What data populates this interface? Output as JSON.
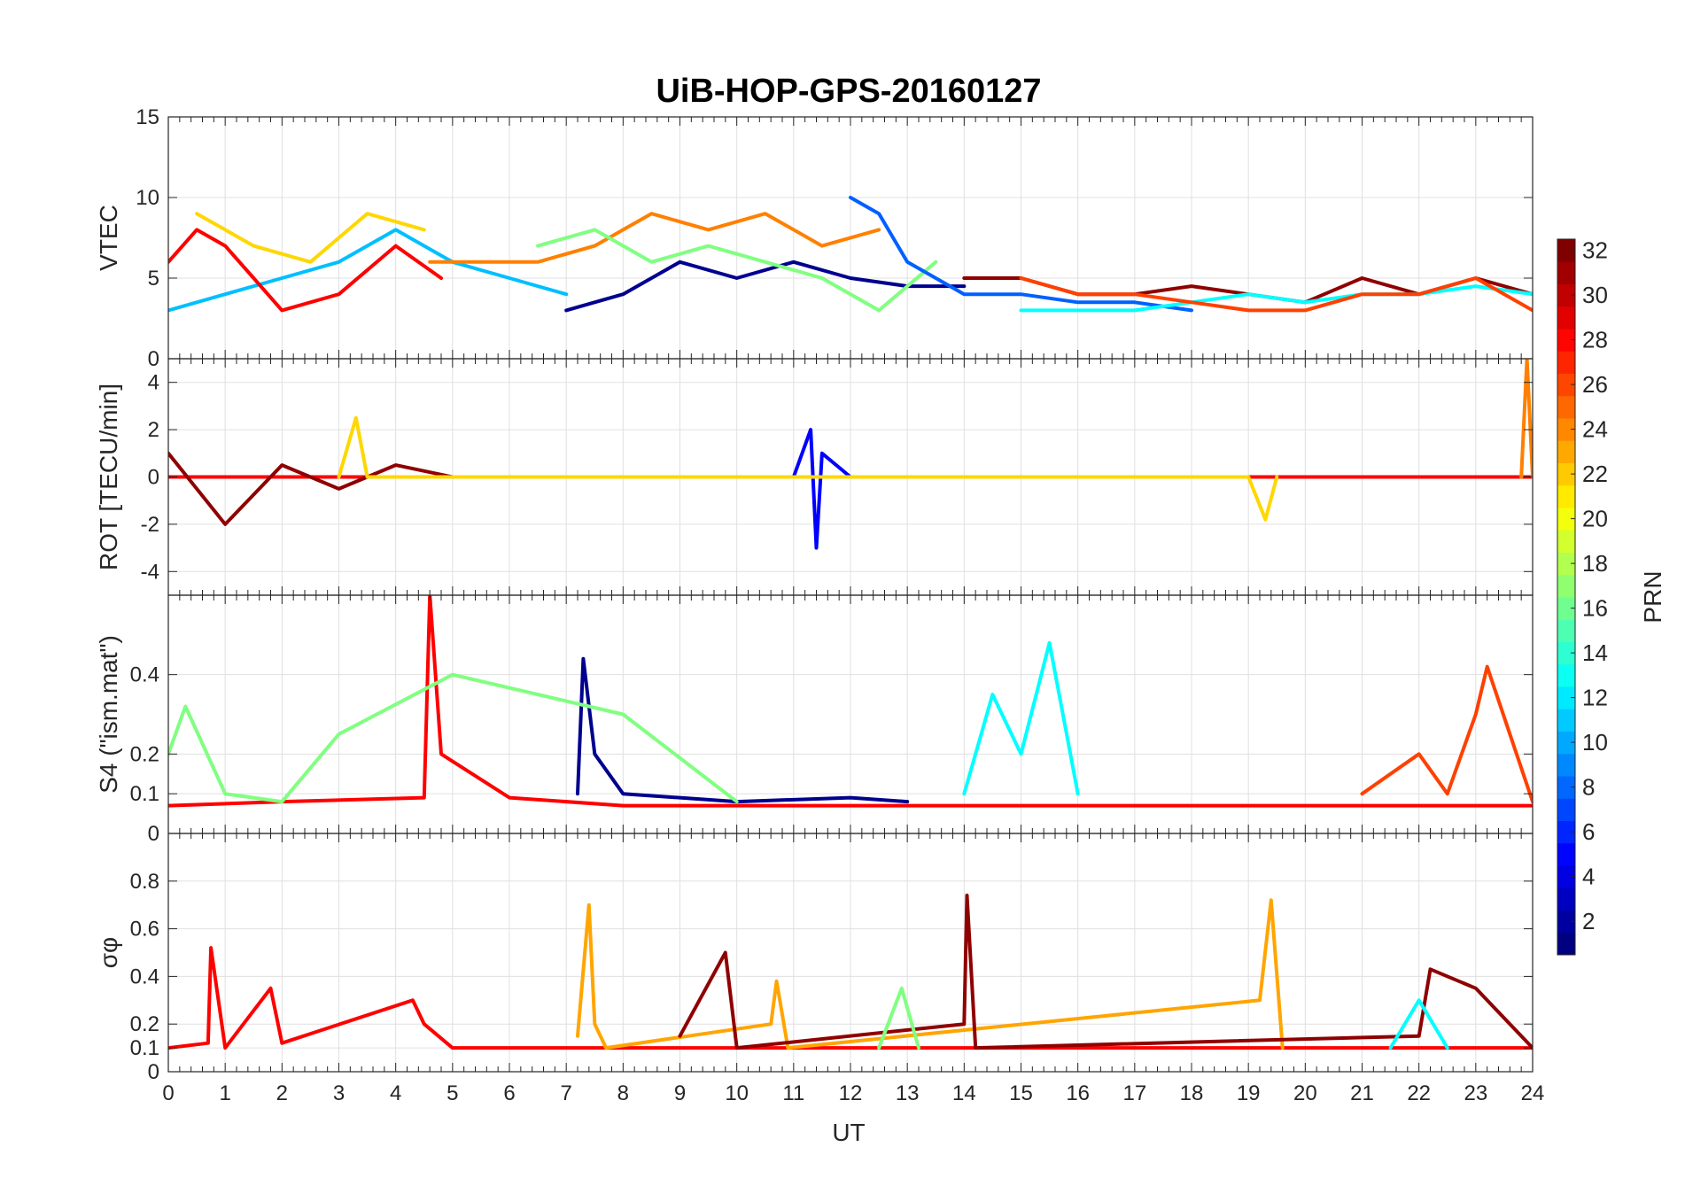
{
  "chart_data": {
    "type": "line",
    "title": "UiB-HOP-GPS-20160127",
    "xlabel": "UT",
    "xlim": [
      0,
      24
    ],
    "xticks": [
      0,
      1,
      2,
      3,
      4,
      5,
      6,
      7,
      8,
      9,
      10,
      11,
      12,
      13,
      14,
      15,
      16,
      17,
      18,
      19,
      20,
      21,
      22,
      23,
      24
    ],
    "panels": [
      {
        "id": "vtec",
        "ylabel": "VTEC",
        "ylim": [
          0,
          15
        ],
        "yticks": [
          0,
          5,
          10,
          15
        ],
        "series": [
          {
            "color": "#00bfff",
            "x": [
              0,
              1,
              2,
              3,
              4,
              5,
              6,
              7
            ],
            "y": [
              3,
              4,
              5,
              6,
              8,
              6,
              5,
              4
            ]
          },
          {
            "color": "#00008f",
            "x": [
              7,
              8,
              9,
              10,
              11,
              12,
              13,
              14
            ],
            "y": [
              3,
              4,
              6,
              5,
              6,
              5,
              4.5,
              4.5
            ]
          },
          {
            "color": "#ff0000",
            "x": [
              0,
              0.5,
              1,
              1.5,
              2,
              3,
              4,
              4.8
            ],
            "y": [
              6,
              8,
              7,
              5,
              3,
              4,
              7,
              5
            ]
          },
          {
            "color": "#ffd700",
            "x": [
              0.5,
              1.5,
              2.5,
              3.5,
              4.5
            ],
            "y": [
              9,
              7,
              6,
              9,
              8
            ]
          },
          {
            "color": "#ff8000",
            "x": [
              4.6,
              5.5,
              6.5,
              7.5,
              8.5,
              9.5,
              10.5,
              11.5,
              12.5
            ],
            "y": [
              6,
              6,
              6,
              7,
              9,
              8,
              9,
              7,
              8
            ]
          },
          {
            "color": "#80ff80",
            "x": [
              6.5,
              7.5,
              8.5,
              9.5,
              10.5,
              11.5,
              12.5,
              13.5
            ],
            "y": [
              7,
              8,
              6,
              7,
              6,
              5,
              3,
              6
            ]
          },
          {
            "color": "#0060ff",
            "x": [
              12,
              12.5,
              13,
              14,
              15,
              16,
              17,
              18
            ],
            "y": [
              10,
              9,
              6,
              4,
              4,
              3.5,
              3.5,
              3
            ]
          },
          {
            "color": "#8f0000",
            "x": [
              14,
              15,
              16,
              17,
              18,
              19,
              20,
              21,
              22,
              23,
              24
            ],
            "y": [
              5,
              5,
              4,
              4,
              4.5,
              4,
              3.5,
              5,
              4,
              5,
              4
            ]
          },
          {
            "color": "#00ffff",
            "x": [
              15,
              16,
              17,
              18,
              19,
              20,
              21,
              22,
              23,
              24
            ],
            "y": [
              3,
              3,
              3,
              3.5,
              4,
              3.5,
              4,
              4,
              4.5,
              4
            ]
          },
          {
            "color": "#ff4000",
            "x": [
              15,
              16,
              17,
              18,
              19,
              20,
              21,
              22,
              23,
              24
            ],
            "y": [
              5,
              4,
              4,
              3.5,
              3,
              3,
              4,
              4,
              5,
              3
            ]
          }
        ]
      },
      {
        "id": "rot",
        "ylabel": "ROT [TECU/min]",
        "ylim": [
          -5,
          5
        ],
        "yticks": [
          -4,
          -2,
          0,
          2,
          4
        ],
        "series": [
          {
            "color": "#ff0000",
            "x": [
              0,
              2,
              4,
              6,
              8,
              10,
              12,
              14,
              16,
              18,
              20,
              22,
              24
            ],
            "y": [
              0,
              0,
              0,
              0,
              0,
              0,
              0,
              0,
              0,
              0,
              0,
              0,
              0
            ]
          },
          {
            "color": "#8f0000",
            "x": [
              0,
              1,
              2,
              3,
              4,
              5
            ],
            "y": [
              1,
              -2,
              0.5,
              -0.5,
              0.5,
              0
            ]
          },
          {
            "color": "#0000ff",
            "x": [
              11,
              11.3,
              11.4,
              11.5,
              12
            ],
            "y": [
              0,
              2,
              -3,
              1,
              0
            ]
          },
          {
            "color": "#ffd700",
            "x": [
              3,
              3.3,
              3.5,
              19,
              19.3,
              19.5
            ],
            "y": [
              0,
              2.5,
              0,
              0,
              -1.8,
              0
            ]
          },
          {
            "color": "#ff8000",
            "x": [
              23.8,
              23.9,
              24
            ],
            "y": [
              0,
              5,
              0
            ]
          }
        ]
      },
      {
        "id": "s4",
        "ylabel": "S4 (\"ism.mat\")",
        "ylim": [
          0,
          0.6
        ],
        "yticks": [
          0,
          0.1,
          0.2,
          0.4
        ],
        "series": [
          {
            "color": "#ff0000",
            "x": [
              0,
              2,
              4.5,
              4.6,
              4.8,
              6,
              8,
              10,
              12,
              14,
              16,
              18,
              20,
              22,
              24
            ],
            "y": [
              0.07,
              0.08,
              0.09,
              0.6,
              0.2,
              0.09,
              0.07,
              0.07,
              0.07,
              0.07,
              0.07,
              0.07,
              0.07,
              0.07,
              0.07
            ]
          },
          {
            "color": "#00008f",
            "x": [
              7.2,
              7.3,
              7.5,
              8,
              10,
              12,
              13
            ],
            "y": [
              0.1,
              0.44,
              0.2,
              0.1,
              0.08,
              0.09,
              0.08
            ]
          },
          {
            "color": "#00ffff",
            "x": [
              14,
              14.5,
              15,
              15.5,
              16
            ],
            "y": [
              0.1,
              0.35,
              0.2,
              0.48,
              0.1
            ]
          },
          {
            "color": "#ff4000",
            "x": [
              21,
              22,
              22.5,
              23,
              23.2,
              24
            ],
            "y": [
              0.1,
              0.2,
              0.1,
              0.3,
              0.42,
              0.08
            ]
          },
          {
            "color": "#80ff80",
            "x": [
              0,
              0.3,
              1,
              2,
              3,
              5,
              8,
              10
            ],
            "y": [
              0.2,
              0.32,
              0.1,
              0.08,
              0.25,
              0.4,
              0.3,
              0.08
            ]
          }
        ]
      },
      {
        "id": "sigma",
        "ylabel": "σφ",
        "ylim": [
          0,
          1
        ],
        "yticks": [
          0,
          0.1,
          0.2,
          0.4,
          0.6,
          0.8
        ],
        "series": [
          {
            "color": "#ff0000",
            "x": [
              0,
              0.7,
              0.75,
              1,
              1.8,
              2,
              4.3,
              4.5,
              5,
              24
            ],
            "y": [
              0.1,
              0.12,
              0.52,
              0.1,
              0.35,
              0.12,
              0.3,
              0.2,
              0.1,
              0.1
            ]
          },
          {
            "color": "#ffa500",
            "x": [
              7.2,
              7.4,
              7.5,
              7.7,
              10.6,
              10.7,
              10.9,
              19.2,
              19.4,
              19.6
            ],
            "y": [
              0.15,
              0.7,
              0.2,
              0.1,
              0.2,
              0.38,
              0.1,
              0.3,
              0.72,
              0.1
            ]
          },
          {
            "color": "#8f0000",
            "x": [
              9,
              9.8,
              10,
              14,
              14.05,
              14.2,
              22,
              22.2,
              23,
              24
            ],
            "y": [
              0.15,
              0.5,
              0.1,
              0.2,
              0.74,
              0.1,
              0.15,
              0.43,
              0.35,
              0.1
            ]
          },
          {
            "color": "#80ff80",
            "x": [
              12.5,
              12.9,
              13.2
            ],
            "y": [
              0.1,
              0.35,
              0.1
            ]
          },
          {
            "color": "#00ffff",
            "x": [
              21.5,
              22,
              22.5
            ],
            "y": [
              0.1,
              0.3,
              0.1
            ]
          }
        ]
      }
    ],
    "colorbar": {
      "label": "PRN",
      "range": [
        1,
        32
      ],
      "ticks": [
        2,
        4,
        6,
        8,
        10,
        12,
        14,
        16,
        18,
        20,
        22,
        24,
        26,
        28,
        30,
        32
      ],
      "colormap": "jet"
    }
  }
}
